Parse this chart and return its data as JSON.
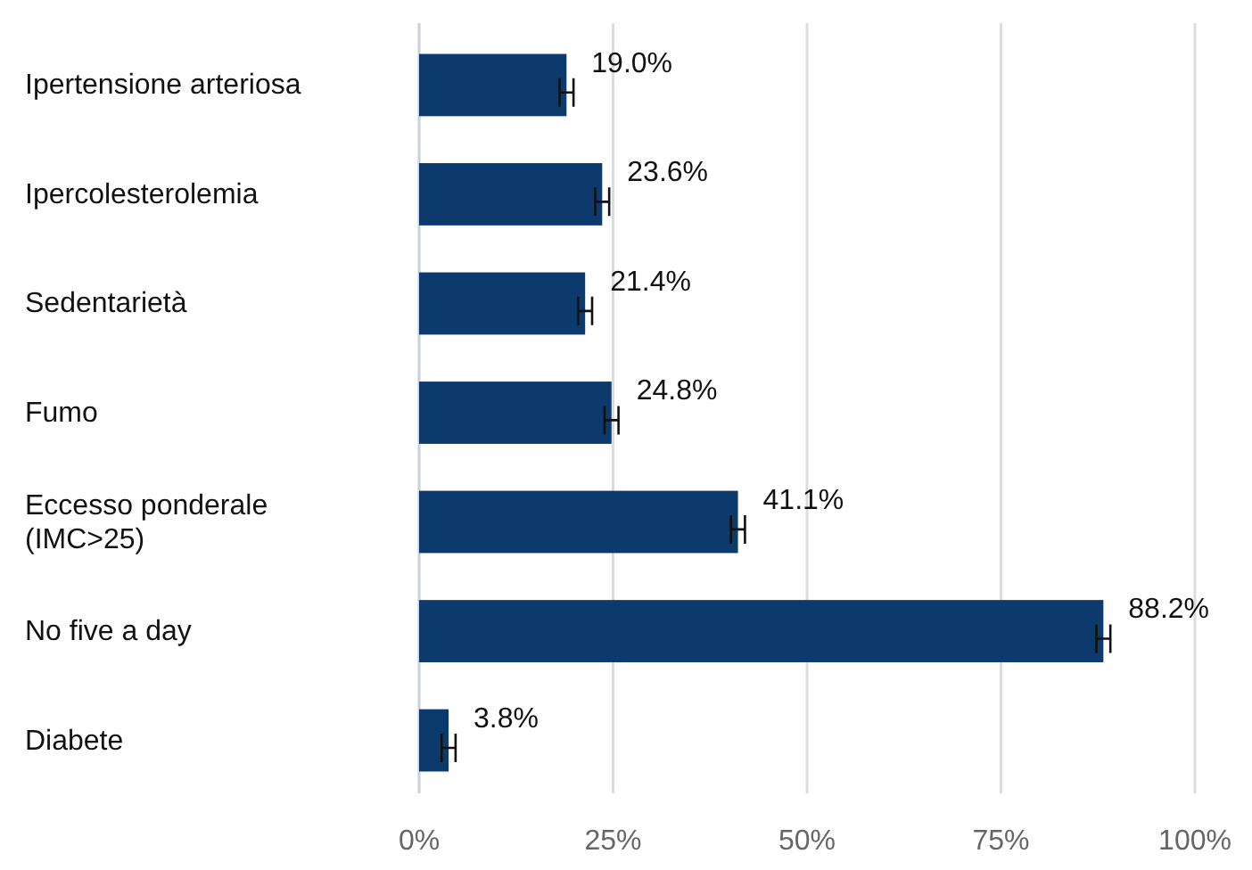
{
  "chart_data": {
    "type": "bar",
    "orientation": "horizontal",
    "categories": [
      "Ipertensione arteriosa",
      "Ipercolesterolemia",
      "Sedentarietà",
      "Fumo",
      "Eccesso ponderale (IMC>25)",
      "No five a day",
      "Diabete"
    ],
    "values": [
      19.0,
      23.6,
      21.4,
      24.8,
      41.1,
      88.2,
      3.8
    ],
    "value_labels": [
      "19.0%",
      "23.6%",
      "21.4%",
      "24.8%",
      "41.1%",
      "88.2%",
      "3.8%"
    ],
    "errors": [
      0.9,
      0.9,
      0.9,
      0.9,
      0.9,
      0.9,
      0.9
    ],
    "color": "#0d3a6c",
    "xlim": [
      0,
      100
    ],
    "xticks": [
      {
        "value": 0,
        "label": "0%"
      },
      {
        "value": 25,
        "label": "25%"
      },
      {
        "value": 50,
        "label": "50%"
      },
      {
        "value": 75,
        "label": "75%"
      },
      {
        "value": 100,
        "label": "100%"
      }
    ],
    "grid": "x"
  }
}
